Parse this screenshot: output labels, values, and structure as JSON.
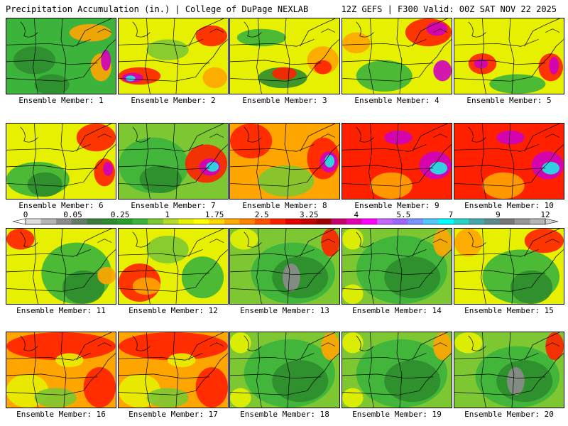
{
  "header": {
    "title_left": "Precipitation Accumulation (in.) | College of DuPage NEXLAB",
    "title_right": "12Z GEFS | F300 Valid: 00Z SAT NOV 22 2025"
  },
  "member_prefix": "Ensemble Member:",
  "members": [
    {
      "number": 1,
      "label": "Ensemble Member: 1",
      "regime": "green-west-purple-east"
    },
    {
      "number": 2,
      "label": "Ensemble Member: 2",
      "regime": "wet-west-cyan"
    },
    {
      "number": 3,
      "label": "Ensemble Member: 3",
      "regime": "mixed"
    },
    {
      "number": 4,
      "label": "Ensemble Member: 4",
      "regime": "wet-northeast"
    },
    {
      "number": 5,
      "label": "Ensemble Member: 5",
      "regime": "orange-purple"
    },
    {
      "number": 6,
      "label": "Ensemble Member: 6",
      "regime": "green-purple-coast"
    },
    {
      "number": 7,
      "label": "Ensemble Member: 7",
      "regime": "green-cyan-coast"
    },
    {
      "number": 8,
      "label": "Ensemble Member: 8",
      "regime": "wet-cyan-coast"
    },
    {
      "number": 9,
      "label": "Ensemble Member: 9",
      "regime": "very-wet"
    },
    {
      "number": 10,
      "label": "Ensemble Member: 10",
      "regime": "very-wet"
    },
    {
      "number": 11,
      "label": "Ensemble Member: 11",
      "regime": "green-east"
    },
    {
      "number": 12,
      "label": "Ensemble Member: 12",
      "regime": "mixed-red"
    },
    {
      "number": 13,
      "label": "Ensemble Member: 13",
      "regime": "dry-gray"
    },
    {
      "number": 14,
      "label": "Ensemble Member: 14",
      "regime": "green-dominant"
    },
    {
      "number": 15,
      "label": "Ensemble Member: 15",
      "regime": "green-red-northeast"
    },
    {
      "number": 16,
      "label": "Ensemble Member: 16",
      "regime": "red-orange"
    },
    {
      "number": 17,
      "label": "Ensemble Member: 17",
      "regime": "red-orange"
    },
    {
      "number": 18,
      "label": "Ensemble Member: 18",
      "regime": "green-dominant"
    },
    {
      "number": 19,
      "label": "Ensemble Member: 19",
      "regime": "green-dominant"
    },
    {
      "number": 20,
      "label": "Ensemble Member: 20",
      "regime": "dry-gray"
    }
  ],
  "colorbar": {
    "units": "in.",
    "tick_labels": [
      "0",
      "0.05",
      "0.25",
      "1",
      "1.75",
      "2.5",
      "3.25",
      "4",
      "5.5",
      "7",
      "9",
      "12"
    ],
    "colors": [
      "#dcdcdc",
      "#b4b4b4",
      "#8c8c8c",
      "#647d64",
      "#3c7d3c",
      "#2d8c2d",
      "#2aa02a",
      "#3cb43c",
      "#7dc832",
      "#b4dc28",
      "#e6f000",
      "#ffff00",
      "#ffd700",
      "#ffaa00",
      "#ff8200",
      "#ff5000",
      "#ff1e00",
      "#e60000",
      "#c80000",
      "#a00000",
      "#c8006e",
      "#e600b4",
      "#ff00ff",
      "#c864ff",
      "#a064ff",
      "#7896ff",
      "#50c8ff",
      "#00ffff",
      "#28d2c8",
      "#46aaaa",
      "#5a8c8c",
      "#787878",
      "#969696",
      "#b4b4b4"
    ]
  },
  "palette": {
    "gray": "#8c8c8c",
    "dark_green": "#2d8c2d",
    "green": "#3cb43c",
    "light_green": "#7dc832",
    "yellow": "#e6f000",
    "orange": "#ffa500",
    "red": "#ff2000",
    "magenta": "#d000c0",
    "cyan": "#20e8e8",
    "state_lines": "#000000"
  }
}
